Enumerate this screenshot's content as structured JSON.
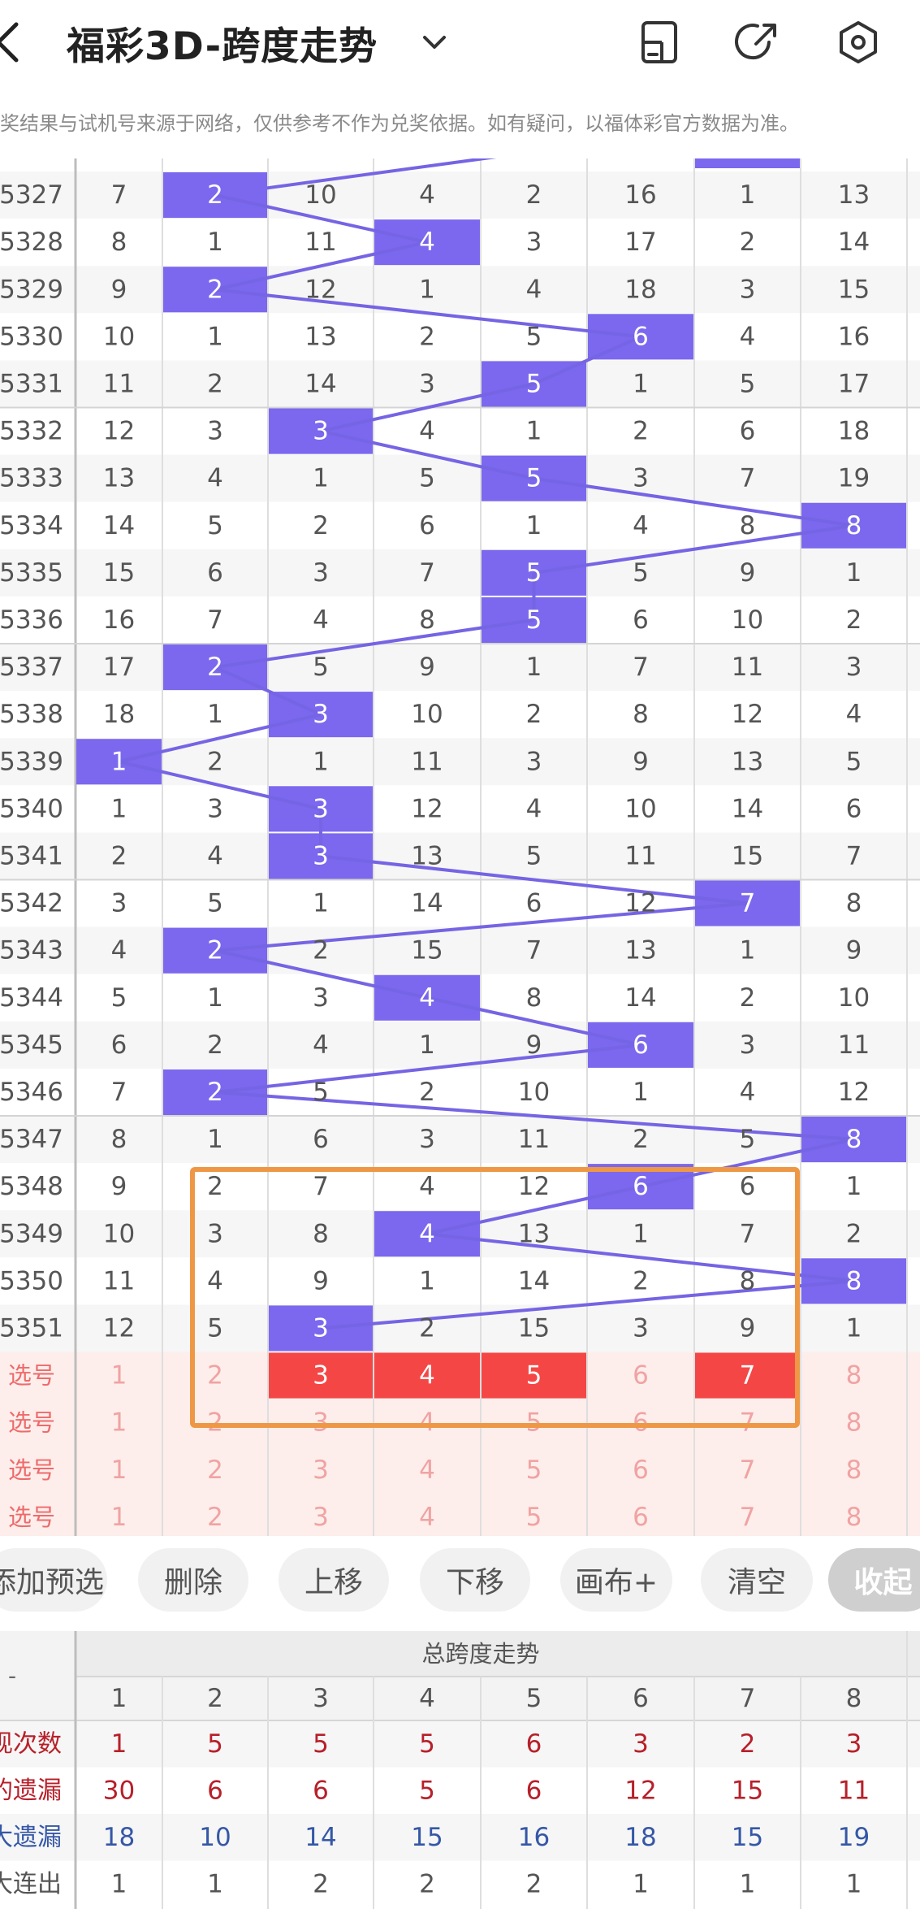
{
  "header": {
    "title": "福彩3D-跨度走势"
  },
  "notice": "奖结果与试机号来源于网络，仅供参考不作为兑奖依据。如有疑问，以福体彩官方数据为准。",
  "grid": {
    "rows": [
      {
        "issue": "5327",
        "cells": [
          7,
          2,
          10,
          4,
          2,
          16,
          1,
          13
        ],
        "hit": 1
      },
      {
        "issue": "5328",
        "cells": [
          8,
          1,
          11,
          4,
          3,
          17,
          2,
          14
        ],
        "hit": 3
      },
      {
        "issue": "5329",
        "cells": [
          9,
          2,
          12,
          1,
          4,
          18,
          3,
          15
        ],
        "hit": 1
      },
      {
        "issue": "5330",
        "cells": [
          10,
          1,
          13,
          2,
          5,
          6,
          4,
          16
        ],
        "hit": 5
      },
      {
        "issue": "5331",
        "cells": [
          11,
          2,
          14,
          3,
          5,
          1,
          5,
          17
        ],
        "hit": 4
      },
      {
        "issue": "5332",
        "cells": [
          12,
          3,
          3,
          4,
          1,
          2,
          6,
          18
        ],
        "hit": 2
      },
      {
        "issue": "5333",
        "cells": [
          13,
          4,
          1,
          5,
          5,
          3,
          7,
          19
        ],
        "hit": 4
      },
      {
        "issue": "5334",
        "cells": [
          14,
          5,
          2,
          6,
          1,
          4,
          8,
          8
        ],
        "hit": 7
      },
      {
        "issue": "5335",
        "cells": [
          15,
          6,
          3,
          7,
          5,
          5,
          9,
          1
        ],
        "hit": 4
      },
      {
        "issue": "5336",
        "cells": [
          16,
          7,
          4,
          8,
          5,
          6,
          10,
          2
        ],
        "hit": 4
      },
      {
        "issue": "5337",
        "cells": [
          17,
          2,
          5,
          9,
          1,
          7,
          11,
          3
        ],
        "hit": 1
      },
      {
        "issue": "5338",
        "cells": [
          18,
          1,
          3,
          10,
          2,
          8,
          12,
          4
        ],
        "hit": 2
      },
      {
        "issue": "5339",
        "cells": [
          1,
          2,
          1,
          11,
          3,
          9,
          13,
          5
        ],
        "hit": 0
      },
      {
        "issue": "5340",
        "cells": [
          1,
          3,
          3,
          12,
          4,
          10,
          14,
          6
        ],
        "hit": 2
      },
      {
        "issue": "5341",
        "cells": [
          2,
          4,
          3,
          13,
          5,
          11,
          15,
          7
        ],
        "hit": 2
      },
      {
        "issue": "5342",
        "cells": [
          3,
          5,
          1,
          14,
          6,
          12,
          7,
          8
        ],
        "hit": 6
      },
      {
        "issue": "5343",
        "cells": [
          4,
          2,
          2,
          15,
          7,
          13,
          1,
          9
        ],
        "hit": 1
      },
      {
        "issue": "5344",
        "cells": [
          5,
          1,
          3,
          4,
          8,
          14,
          2,
          10
        ],
        "hit": 3
      },
      {
        "issue": "5345",
        "cells": [
          6,
          2,
          4,
          1,
          9,
          6,
          3,
          11
        ],
        "hit": 5
      },
      {
        "issue": "5346",
        "cells": [
          7,
          2,
          5,
          2,
          10,
          1,
          4,
          12
        ],
        "hit": 1
      },
      {
        "issue": "5347",
        "cells": [
          8,
          1,
          6,
          3,
          11,
          2,
          5,
          8
        ],
        "hit": 7
      },
      {
        "issue": "5348",
        "cells": [
          9,
          2,
          7,
          4,
          12,
          6,
          6,
          1
        ],
        "hit": 5
      },
      {
        "issue": "5349",
        "cells": [
          10,
          3,
          8,
          4,
          13,
          1,
          7,
          2
        ],
        "hit": 3
      },
      {
        "issue": "5350",
        "cells": [
          11,
          4,
          9,
          1,
          14,
          2,
          8,
          8
        ],
        "hit": 7
      },
      {
        "issue": "5351",
        "cells": [
          12,
          5,
          3,
          2,
          15,
          3,
          9,
          1
        ],
        "hit": 2
      }
    ],
    "select_rows": [
      {
        "label": "选号",
        "cells": [
          1,
          2,
          3,
          4,
          5,
          6,
          7,
          8
        ],
        "selected": [
          2,
          3,
          4,
          6
        ]
      },
      {
        "label": "选号",
        "cells": [
          1,
          2,
          3,
          4,
          5,
          6,
          7,
          8
        ],
        "selected": []
      },
      {
        "label": "选号",
        "cells": [
          1,
          2,
          3,
          4,
          5,
          6,
          7,
          8
        ],
        "selected": []
      },
      {
        "label": "选号",
        "cells": [
          1,
          2,
          3,
          4,
          5,
          6,
          7,
          8
        ],
        "selected": []
      }
    ]
  },
  "buttons": [
    {
      "label": "添加预选"
    },
    {
      "label": "删除"
    },
    {
      "label": "上移"
    },
    {
      "label": "下移"
    },
    {
      "label": "画布+"
    },
    {
      "label": "清空"
    },
    {
      "label": "收起"
    }
  ],
  "stats": {
    "corner_label": "-",
    "title": "总跨度走势",
    "columns": [
      "1",
      "2",
      "3",
      "4",
      "5",
      "6",
      "7",
      "8"
    ],
    "rows": [
      {
        "label": "现次数",
        "values": [
          1,
          5,
          5,
          5,
          6,
          3,
          2,
          3
        ]
      },
      {
        "label": "的遗漏",
        "values": [
          30,
          6,
          6,
          5,
          6,
          12,
          15,
          11
        ]
      },
      {
        "label": "大遗漏",
        "values": [
          18,
          10,
          14,
          15,
          16,
          18,
          15,
          19
        ]
      },
      {
        "label": "大连出",
        "values": [
          1,
          1,
          2,
          2,
          2,
          1,
          1,
          1
        ]
      }
    ]
  },
  "colors": {
    "hit_purple": "#7B68EE",
    "line_purple": "#7564E4",
    "selected_red": "#F54646",
    "box_orange": "#EE9845",
    "pink_bg": "#FDEEEB",
    "pink_text": "#F0A3A3",
    "dark_red_text": "#B7202A",
    "blue_text": "#3557A6"
  }
}
